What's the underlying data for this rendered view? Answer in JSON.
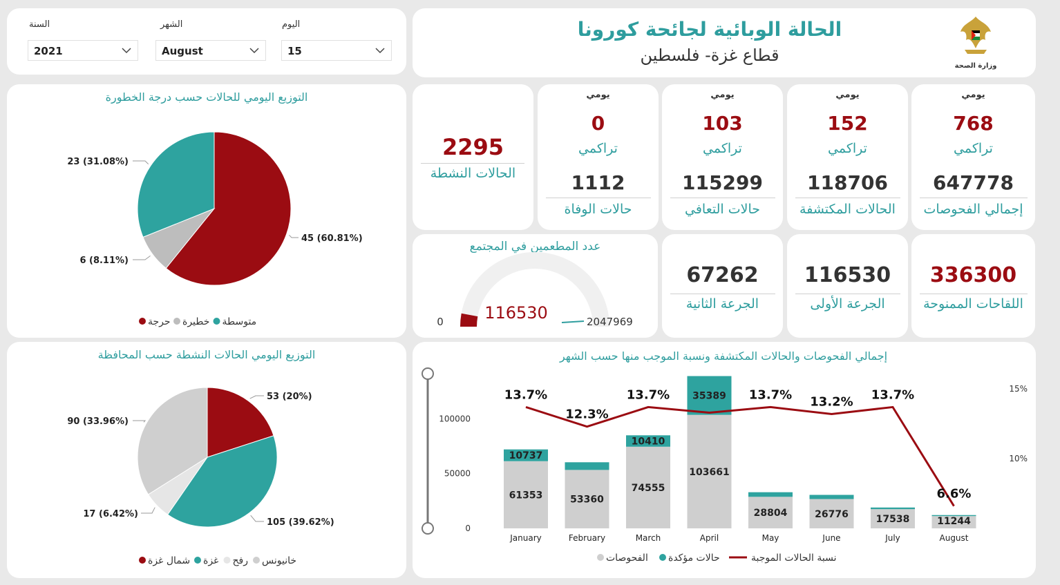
{
  "filters": [
    {
      "label": "السنة",
      "value": "2021"
    },
    {
      "label": "الشهر",
      "value": "August"
    },
    {
      "label": "اليوم",
      "value": "15"
    }
  ],
  "header": {
    "title": "الحالة الوبائية لجائحة كورونا",
    "subtitle": "قطاع غزة- فلسطين",
    "ministry": "وزارة الصحة"
  },
  "kpis": [
    {
      "daily_label": "يومي",
      "daily": "768",
      "cum_label": "تراكمي",
      "cumulative": "647778",
      "name": "إجمالي الفحوصات"
    },
    {
      "daily_label": "يومي",
      "daily": "152",
      "cum_label": "تراكمي",
      "cumulative": "118706",
      "name": "الحالات المكتشفة"
    },
    {
      "daily_label": "يومي",
      "daily": "103",
      "cum_label": "تراكمي",
      "cumulative": "115299",
      "name": "حالات التعافي"
    },
    {
      "daily_label": "يومي",
      "daily": "0",
      "cum_label": "تراكمي",
      "cumulative": "1112",
      "name": "حالات الوفاة"
    }
  ],
  "active": {
    "value": "2295",
    "label": "الحالات النشطة"
  },
  "vaccines": [
    {
      "value": "336300",
      "label": "اللقاحات الممنوحة"
    },
    {
      "value": "116530",
      "label": "الجرعة الأولى"
    },
    {
      "value": "67262",
      "label": "الجرعة الثانية"
    }
  ],
  "gauge": {
    "title": "عدد المطعمين في المجتمع",
    "value": 116530,
    "value_label": "116530",
    "min_label": "0",
    "max_label": "2047969",
    "max": 2047969
  },
  "chart_data": [
    {
      "type": "pie",
      "title": "التوزيع اليومي للحالات حسب درجة الخطورة",
      "slices": [
        {
          "name": "حرجة",
          "value": 45,
          "label": "45 (60.81%)",
          "color": "#9b0c12"
        },
        {
          "name": "خطيرة",
          "value": 6,
          "label": "6 (8.11%)",
          "color": "#bdbdbd"
        },
        {
          "name": "متوسطة",
          "value": 23,
          "label": "23 (31.08%)",
          "color": "#2ea39f"
        }
      ],
      "legend": [
        "حرجة",
        "خطيرة",
        "متوسطة"
      ]
    },
    {
      "type": "pie",
      "title": "التوزيع اليومي الحالات النشطة حسب المحافظة",
      "slices": [
        {
          "name": "شمال غزة",
          "value": 53,
          "label": "53 (20%)",
          "color": "#9b0c12"
        },
        {
          "name": "غزة",
          "value": 105,
          "label": "105 (39.62%)",
          "color": "#2ea39f"
        },
        {
          "name": "رفح",
          "value": 17,
          "label": "17 (6.42%)",
          "color": "#e6e6e6"
        },
        {
          "name": "خانيونس",
          "value": 90,
          "label": "90 (33.96%)",
          "color": "#cfcfcf"
        }
      ],
      "legend": [
        "شمال غزة",
        "غزة",
        "رفح",
        "خانيونس"
      ]
    },
    {
      "type": "bar",
      "title": "إجمالي الفحوصات والحالات المكتشفة ونسبة الموجب منها حسب الشهر",
      "categories": [
        "January",
        "February",
        "March",
        "April",
        "May",
        "June",
        "July",
        "August"
      ],
      "series": [
        {
          "name": "الفحوصات",
          "values": [
            61353,
            53360,
            74555,
            103661,
            28804,
            26776,
            17538,
            11244
          ],
          "color": "#cfcfcf"
        },
        {
          "name": "حالات مؤكدة",
          "values": [
            10737,
            7000,
            10410,
            35389,
            4200,
            3800,
            1500,
            900
          ],
          "labels": [
            "10737",
            "",
            "10410",
            "35389",
            "",
            "",
            "",
            ""
          ],
          "color": "#2ea39f"
        }
      ],
      "line": {
        "name": "نسبة الحالات الموجبة",
        "values": [
          13.7,
          12.3,
          13.7,
          13.3,
          13.7,
          13.2,
          13.7,
          6.6
        ],
        "labels": [
          "13.7%",
          "12.3%",
          "13.7%",
          "",
          "13.7%",
          "13.2%",
          "13.7%",
          "6.6%"
        ],
        "color": "#9b0c12"
      },
      "y_ticks": [
        "100000",
        "50000",
        "0"
      ],
      "y_max": 140000,
      "y2_ticks": [
        "15%",
        "10%"
      ],
      "y2_range": [
        5,
        16
      ],
      "legend": [
        "الفحوصات",
        "حالات مؤكدة",
        "نسبة الحالات الموجبة"
      ]
    }
  ]
}
